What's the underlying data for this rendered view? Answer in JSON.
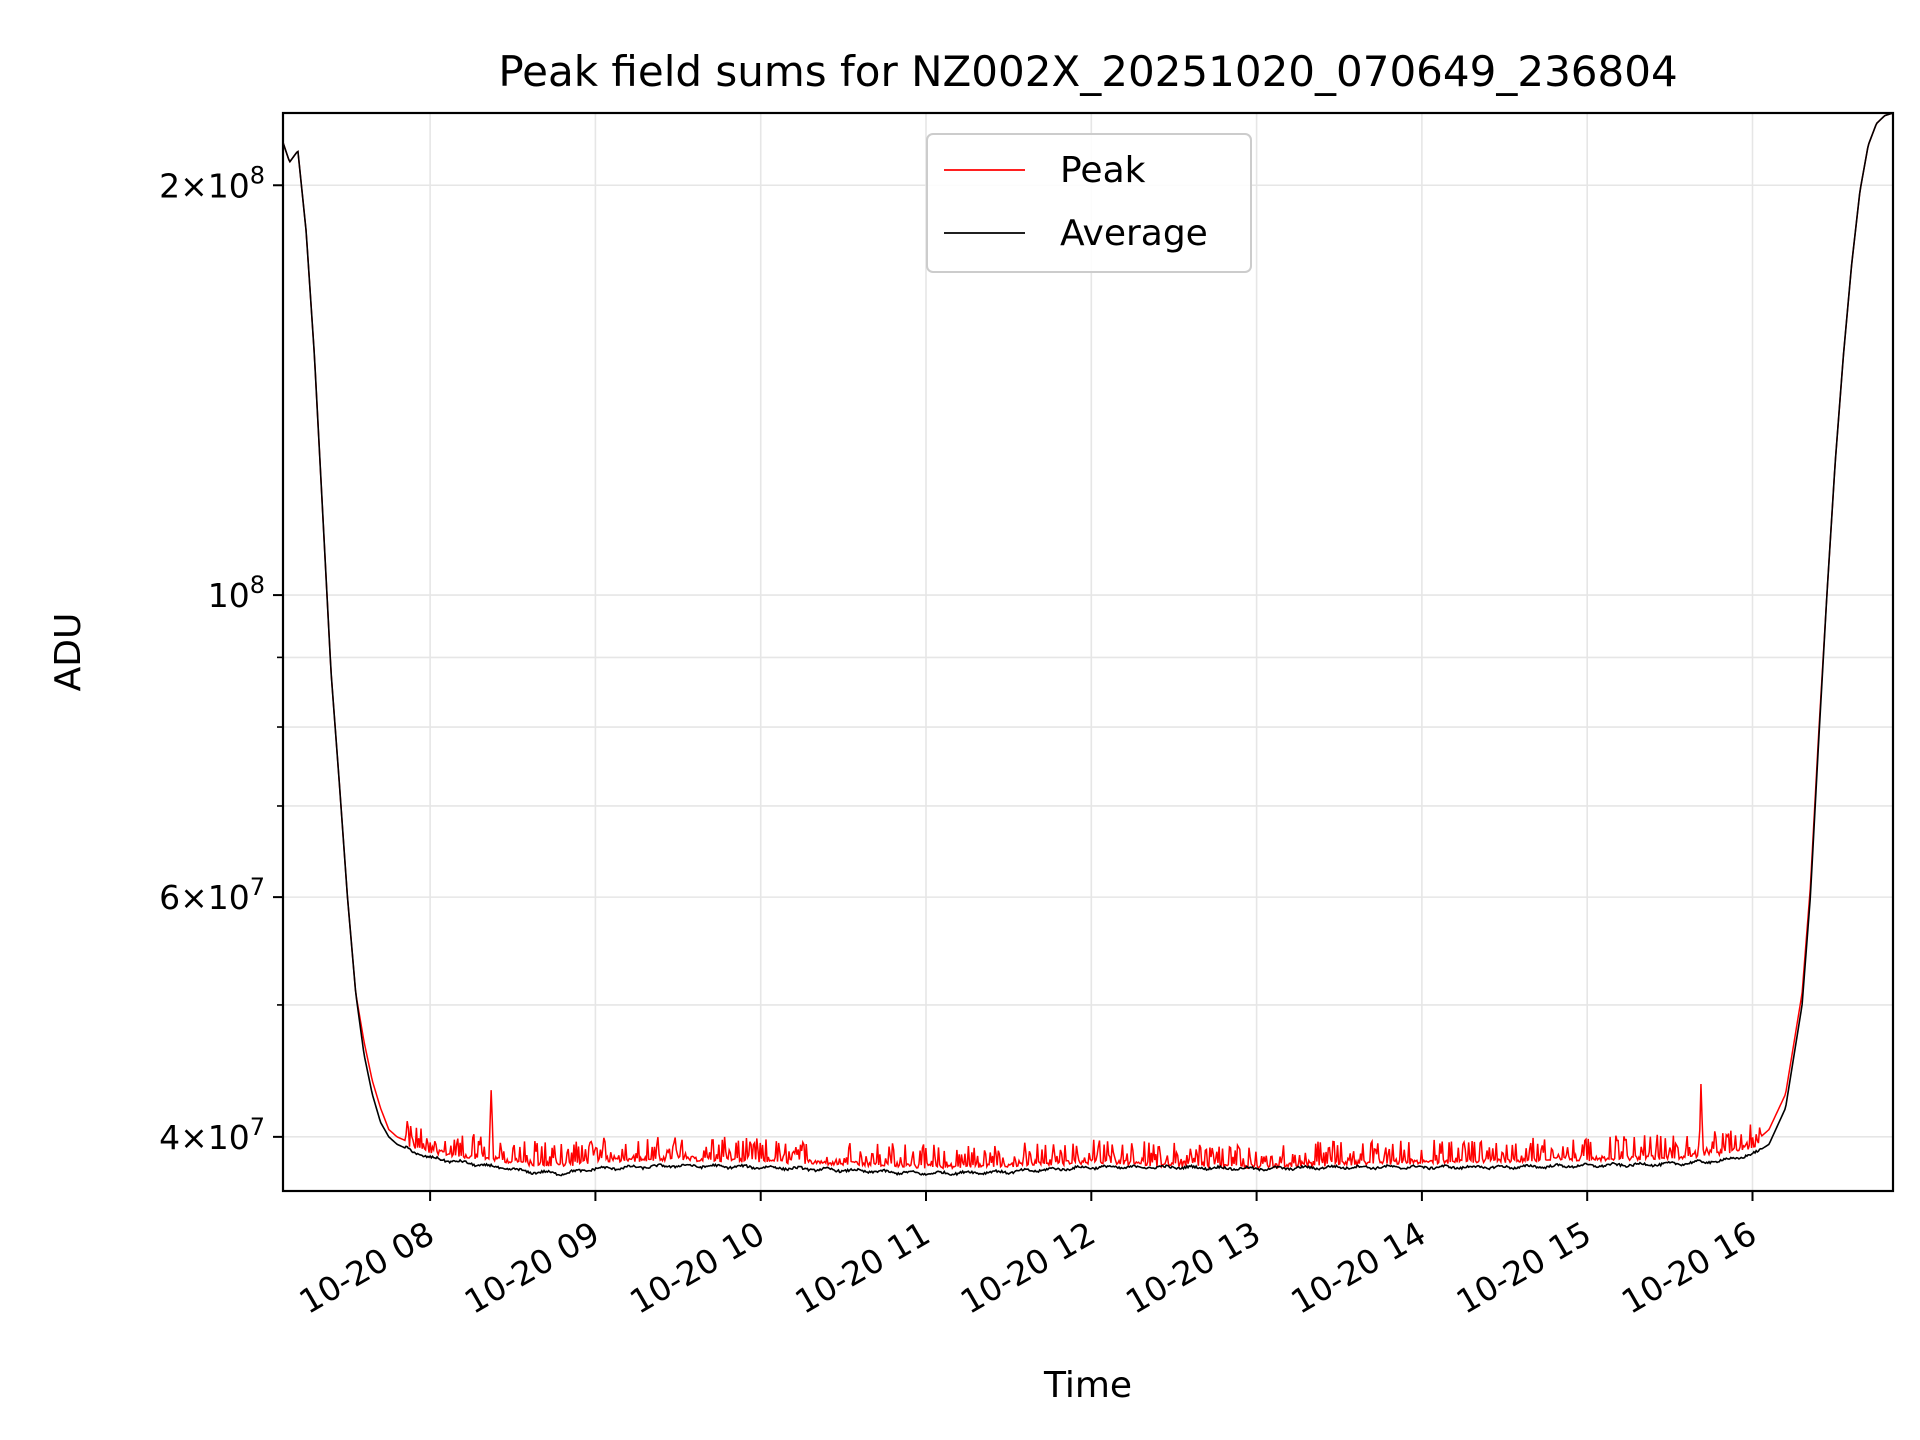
{
  "chart_data": {
    "type": "line",
    "title": "Peak field sums for NZ002X_20251020_070649_236804",
    "xlabel": "Time",
    "ylabel": "ADU",
    "yscale": "log",
    "xlim": [
      7.11,
      16.85
    ],
    "ylim": [
      36500000,
      226000000
    ],
    "grid": true,
    "legend": {
      "position": "top-center",
      "entries": [
        "Peak",
        "Average"
      ]
    },
    "x_ticks": [
      {
        "value": 8,
        "label": "10-20 08"
      },
      {
        "value": 9,
        "label": "10-20 09"
      },
      {
        "value": 10,
        "label": "10-20 10"
      },
      {
        "value": 11,
        "label": "10-20 11"
      },
      {
        "value": 12,
        "label": "10-20 12"
      },
      {
        "value": 13,
        "label": "10-20 13"
      },
      {
        "value": 14,
        "label": "10-20 14"
      },
      {
        "value": 15,
        "label": "10-20 15"
      },
      {
        "value": 16,
        "label": "10-20 16"
      }
    ],
    "y_ticks_major": [
      {
        "value": 40000000,
        "mantissa": "4",
        "exponent": "7"
      },
      {
        "value": 60000000,
        "mantissa": "6",
        "exponent": "7"
      },
      {
        "value": 100000000,
        "mantissa": "",
        "exponent": "8"
      },
      {
        "value": 200000000,
        "mantissa": "2",
        "exponent": "8"
      }
    ],
    "y_ticks_minor": [
      50000000,
      70000000,
      80000000,
      90000000
    ],
    "series": [
      {
        "name": "Average",
        "color": "#000000",
        "x": [
          7.11,
          7.15,
          7.2,
          7.25,
          7.3,
          7.35,
          7.4,
          7.45,
          7.5,
          7.55,
          7.6,
          7.65,
          7.7,
          7.75,
          7.8,
          7.9,
          8.0,
          8.2,
          8.4,
          8.6,
          8.8,
          9.0,
          9.5,
          10.0,
          10.5,
          11.0,
          11.5,
          12.0,
          12.5,
          13.0,
          13.5,
          14.0,
          14.5,
          15.0,
          15.5,
          15.8,
          16.0,
          16.1,
          16.2,
          16.3,
          16.35,
          16.4,
          16.45,
          16.5,
          16.55,
          16.6,
          16.65,
          16.7,
          16.75,
          16.8,
          16.85
        ],
        "values": [
          215000000,
          208000000,
          212000000,
          185000000,
          150000000,
          115000000,
          88000000,
          73000000,
          60000000,
          51000000,
          46000000,
          43000000,
          41000000,
          40000000,
          39500000,
          39000000,
          38600000,
          38300000,
          38000000,
          37700000,
          37600000,
          37900000,
          38100000,
          38000000,
          37800000,
          37600000,
          37700000,
          38000000,
          38000000,
          37900000,
          38000000,
          38000000,
          38000000,
          38100000,
          38200000,
          38400000,
          38800000,
          39500000,
          42000000,
          50000000,
          60000000,
          78000000,
          100000000,
          125000000,
          150000000,
          175000000,
          198000000,
          214000000,
          222000000,
          225000000,
          226000000
        ]
      },
      {
        "name": "Peak",
        "color": "#ff0000",
        "x": [
          7.11,
          7.15,
          7.2,
          7.25,
          7.3,
          7.35,
          7.4,
          7.45,
          7.5,
          7.55,
          7.6,
          7.65,
          7.7,
          7.75,
          7.8,
          7.9,
          8.0,
          8.2,
          8.36,
          8.37,
          8.38,
          8.6,
          8.8,
          9.0,
          9.5,
          10.0,
          10.5,
          11.0,
          11.5,
          12.0,
          12.5,
          13.0,
          13.5,
          14.0,
          14.5,
          15.0,
          15.5,
          15.68,
          15.69,
          15.7,
          15.8,
          16.0,
          16.1,
          16.2,
          16.3,
          16.35,
          16.4,
          16.45,
          16.5,
          16.55,
          16.6,
          16.65,
          16.7,
          16.75,
          16.8,
          16.85
        ],
        "values": [
          215000000,
          208000000,
          212000000,
          185000000,
          150000000,
          115000000,
          88000000,
          73000000,
          60000000,
          51000000,
          47000000,
          44000000,
          42000000,
          40500000,
          40000000,
          39500000,
          39200000,
          38900000,
          38700000,
          44000000,
          38700000,
          38400000,
          38300000,
          38600000,
          38700000,
          38600000,
          38400000,
          38200000,
          38300000,
          38500000,
          38300000,
          38200000,
          38400000,
          38500000,
          38600000,
          38700000,
          38800000,
          38900000,
          43500000,
          39000000,
          39100000,
          39500000,
          40500000,
          43000000,
          51000000,
          61000000,
          79000000,
          100000000,
          125000000,
          150000000,
          175000000,
          198000000,
          214000000,
          222000000,
          225000000,
          226000000
        ]
      }
    ]
  }
}
